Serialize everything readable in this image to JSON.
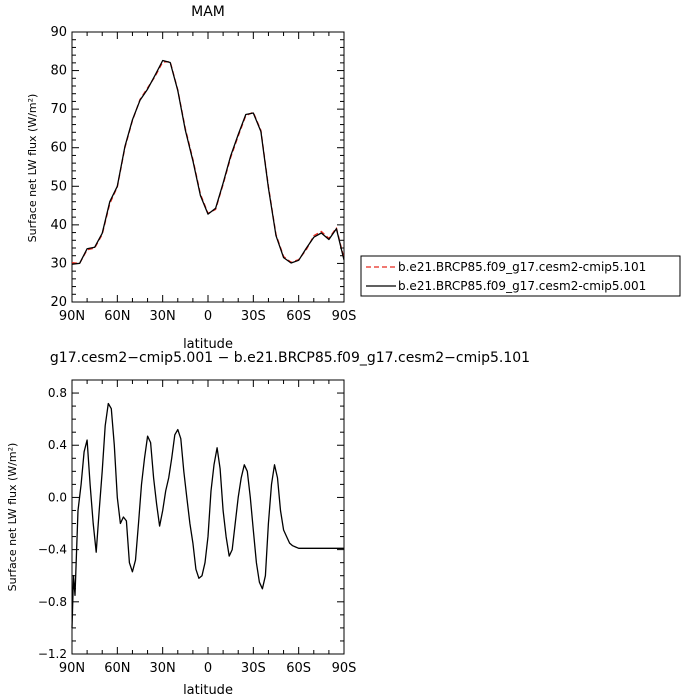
{
  "chart_data": [
    {
      "type": "line",
      "title": "MAM",
      "xlabel": "latitude",
      "ylabel": "Surface net LW flux (W/m²)",
      "xlim": [
        90,
        -90
      ],
      "ylim": [
        20,
        90
      ],
      "x_ticks": [
        "90N",
        "60N",
        "30N",
        "0",
        "30S",
        "60S",
        "90S"
      ],
      "y_ticks": [
        "20",
        "30",
        "40",
        "50",
        "60",
        "70",
        "80",
        "90"
      ],
      "legend": {
        "placement": "right",
        "entries": [
          {
            "label": "b.e21.BRCP85.f09_g17.cesm2-cmip5.101",
            "color": "#e8291e",
            "dash": true
          },
          {
            "label": "b.e21.BRCP85.f09_g17.cesm2-cmip5.001",
            "color": "#000000",
            "dash": false
          }
        ]
      },
      "series": [
        {
          "name": "b.e21.BRCP85.f09_g17.cesm2-cmip5.101",
          "color": "#e8291e",
          "x": [
            90,
            85,
            80,
            75,
            70,
            65,
            60,
            55,
            50,
            45,
            40,
            35,
            30,
            25,
            20,
            15,
            10,
            5,
            0,
            -5,
            -10,
            -15,
            -20,
            -25,
            -30,
            -35,
            -40,
            -45,
            -50,
            -55,
            -60,
            -65,
            -70,
            -75,
            -80,
            -85,
            -90
          ],
          "y": [
            30.2,
            30,
            33.5,
            34,
            37.5,
            45.5,
            49.8,
            60,
            67,
            72.5,
            75.5,
            78.5,
            82.2,
            82.3,
            75,
            65,
            57,
            48,
            43,
            44,
            50.5,
            57.5,
            63,
            68.3,
            69.2,
            64.5,
            50,
            37.5,
            31.8,
            30.3,
            31,
            33.5,
            37.2,
            38.3,
            36.5,
            39.2,
            31.3
          ]
        },
        {
          "name": "b.e21.BRCP85.f09_g17.cesm2-cmip5.001",
          "color": "#000000",
          "x": [
            90,
            85,
            80,
            75,
            70,
            65,
            60,
            55,
            50,
            45,
            40,
            35,
            30,
            25,
            20,
            15,
            10,
            5,
            0,
            -5,
            -10,
            -15,
            -20,
            -25,
            -30,
            -35,
            -40,
            -45,
            -50,
            -55,
            -60,
            -65,
            -70,
            -75,
            -80,
            -85,
            -90
          ],
          "y": [
            29.8,
            30,
            33.8,
            34.2,
            37.8,
            46,
            50,
            60.3,
            67.2,
            72.3,
            75.2,
            78.8,
            82.6,
            82.1,
            74.8,
            64.6,
            56.6,
            47.6,
            42.8,
            44.3,
            50.8,
            57.9,
            63.4,
            68.6,
            69,
            64.2,
            49.6,
            37.2,
            31.5,
            30.1,
            30.8,
            33.9,
            36.8,
            37.9,
            36.2,
            39,
            30.9
          ]
        }
      ]
    },
    {
      "type": "line",
      "title": "g17.cesm2−cmip5.001 − b.e21.BRCP85.f09_g17.cesm2−cmip5.101",
      "xlabel": "latitude",
      "ylabel": "Surface net LW flux (W/m²)",
      "xlim": [
        90,
        -90
      ],
      "ylim": [
        -1.2,
        0.9
      ],
      "x_ticks": [
        "90N",
        "60N",
        "30N",
        "0",
        "30S",
        "60S",
        "90S"
      ],
      "y_ticks": [
        "0.8",
        "0.4",
        "0.0",
        "−0.4",
        "−0.8",
        "−1.2"
      ],
      "series": [
        {
          "color": "#000000",
          "x": [
            90,
            89,
            88,
            86,
            84,
            82,
            80,
            78,
            76,
            74,
            72,
            70,
            68,
            66,
            64,
            62,
            60,
            58,
            56,
            54,
            52,
            50,
            48,
            46,
            44,
            42,
            40,
            38,
            36,
            34,
            32,
            30,
            28,
            26,
            24,
            22,
            20,
            18,
            16,
            14,
            12,
            10,
            8,
            6,
            4,
            2,
            0,
            -2,
            -4,
            -6,
            -8,
            -10,
            -12,
            -14,
            -16,
            -18,
            -20,
            -22,
            -24,
            -26,
            -28,
            -30,
            -32,
            -34,
            -36,
            -38,
            -40,
            -42,
            -44,
            -46,
            -48,
            -50,
            -52,
            -54,
            -56,
            -58,
            -60,
            -62,
            -64,
            -66,
            -68,
            -70,
            -72,
            -74,
            -76,
            -78,
            -80,
            -82,
            -84,
            -86,
            -88,
            -90
          ],
          "y": [
            -1.0,
            -0.6,
            -0.75,
            -0.1,
            0.1,
            0.35,
            0.44,
            0.1,
            -0.2,
            -0.42,
            -0.1,
            0.2,
            0.55,
            0.72,
            0.68,
            0.4,
            0.0,
            -0.2,
            -0.15,
            -0.18,
            -0.5,
            -0.57,
            -0.48,
            -0.2,
            0.1,
            0.3,
            0.47,
            0.42,
            0.15,
            -0.05,
            -0.22,
            -0.1,
            0.05,
            0.15,
            0.3,
            0.48,
            0.52,
            0.45,
            0.2,
            0.0,
            -0.2,
            -0.35,
            -0.55,
            -0.62,
            -0.6,
            -0.5,
            -0.3,
            0.05,
            0.25,
            0.38,
            0.22,
            -0.1,
            -0.3,
            -0.45,
            -0.4,
            -0.2,
            0.0,
            0.15,
            0.25,
            0.2,
            0.0,
            -0.25,
            -0.5,
            -0.65,
            -0.7,
            -0.6,
            -0.2,
            0.1,
            0.25,
            0.15,
            -0.1,
            -0.25,
            -0.3,
            -0.35,
            -0.37,
            -0.38,
            -0.39,
            -0.39,
            -0.39,
            -0.39,
            -0.39,
            -0.39,
            -0.39,
            -0.39,
            -0.39,
            -0.39,
            -0.39,
            -0.39,
            -0.39,
            -0.39,
            -0.39,
            -0.39
          ]
        }
      ]
    }
  ]
}
